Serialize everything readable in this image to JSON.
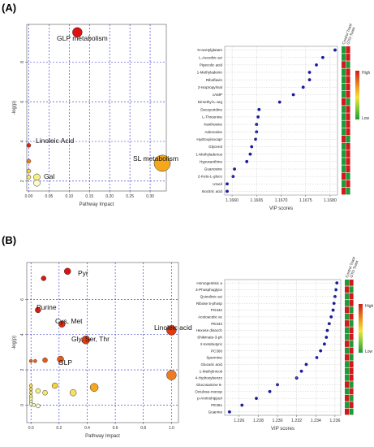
{
  "figure": {
    "panels": [
      {
        "label": "(A)",
        "pathway": {
          "xlabel": "Pathway Impact",
          "ylabel": "-log(p)",
          "xticks": [
            "0.00",
            "0.05",
            "0.10",
            "0.15",
            "0.20",
            "0.25",
            "0.30"
          ],
          "yticks": [
            "2",
            "4",
            "6",
            "8"
          ],
          "annotations": [
            "GLP metabolism",
            "Linoleic Acid",
            "SL metabolism",
            "Gal"
          ]
        },
        "vip": {
          "xlabel": "VIP scores",
          "xticks": [
            "1.1660",
            "1.1665",
            "1.1670",
            "1.1675",
            "1.1680"
          ],
          "heat_headers": [
            "Control Toast",
            "GTO Toast"
          ],
          "legend_high": "High",
          "legend_low": "Low",
          "labels": [
            "N-acetylglutam",
            "L-Ascorbic aci",
            "Pipecolic acid",
            "1-Methyladenin",
            "Riboflavin",
            "2-Isopropylmal",
            "cAMP",
            "Dimethyl-L-arg",
            "Deoxyuridine",
            "L-Threonine",
            "Xanthosine",
            "Adenosine",
            "Hydroxyisocapr",
            "Glycerol",
            "1-Methyladenos",
            "Hypoxanthine",
            "Guanosine",
            "2-Keto-L-gluco",
            "Uracil",
            "Isocitric acid"
          ]
        }
      },
      {
        "label": "(B)",
        "pathway": {
          "xlabel": "Pathway Impact",
          "ylabel": "-log(p)",
          "xticks": [
            "0.0",
            "0.2",
            "0.4",
            "0.6",
            "0.8",
            "1.0"
          ],
          "yticks": [
            "0",
            "2",
            "4",
            "6"
          ],
          "annotations": [
            "Pyr",
            "Purine",
            "Cys, Met",
            "Gly, Ser, Thr",
            "Linoleic acid",
            "GLP"
          ]
        },
        "vip": {
          "xlabel": "VIP scores",
          "xticks": [
            "1.226",
            "1.228",
            "1.230",
            "1.232",
            "1.234",
            "1.236"
          ],
          "heat_headers": [
            "Control Toast",
            "GTO Toast"
          ],
          "legend_high": "High",
          "legend_low": "Low",
          "labels": [
            "Homogentisic a",
            "3-Phosphoglyce",
            "Quinolinic aci",
            "Ribose 5-phosp",
            "PG342",
            "Acetoacetic ac",
            "PE342",
            "Hexose disacch",
            "Shikimate-3-ph",
            "2-Ketobutyric",
            "PC360",
            "Spermine",
            "Glucaric acid",
            "1-Methylnicoti",
            "4-Hydroxybenzo",
            "Glucosamine 6-",
            "Octulose-monop",
            "p-Aminohippuri",
            "PE361",
            "Guanine"
          ]
        }
      }
    ]
  },
  "chart_data": [
    {
      "type": "scatter",
      "title": "",
      "xlabel": "Pathway Impact",
      "ylabel": "-log(p)",
      "xlim": [
        -0.005,
        0.34
      ],
      "ylim": [
        1.5,
        9.9
      ],
      "grid": true,
      "points": [
        {
          "x": 0.12,
          "y": 9.5,
          "size": 6,
          "color": "#e01010",
          "label": "GLP metabolism"
        },
        {
          "x": 0.33,
          "y": 2.9,
          "size": 10,
          "color": "#f5a81c",
          "label": "SL metabolism"
        },
        {
          "x": 0.0,
          "y": 3.8,
          "size": 2.5,
          "color": "#d42a10",
          "label": "Linoleic Acid"
        },
        {
          "x": 0.0,
          "y": 3.0,
          "size": 2.5,
          "color": "#f08020",
          "label": ""
        },
        {
          "x": 0.0,
          "y": 2.5,
          "size": 2.5,
          "color": "#f7d238",
          "label": ""
        },
        {
          "x": 0.0,
          "y": 2.2,
          "size": 2.5,
          "color": "#f7e870",
          "label": ""
        },
        {
          "x": 0.02,
          "y": 2.2,
          "size": 4,
          "color": "#f7f080",
          "label": "Gal"
        },
        {
          "x": 0.02,
          "y": 1.9,
          "size": 4,
          "color": "#fafad2",
          "label": ""
        }
      ]
    },
    {
      "type": "scatter",
      "title": "",
      "xlabel": "VIP scores",
      "ylabel": "",
      "xlim": [
        1.16585,
        1.16815
      ],
      "ylim": [
        0.5,
        20.5
      ],
      "grid": true,
      "categories": [
        "N-acetylglutam",
        "L-Ascorbic aci",
        "Pipecolic acid",
        "1-Methyladenin",
        "Riboflavin",
        "2-Isopropylmal",
        "cAMP",
        "Dimethyl-L-arg",
        "Deoxyuridine",
        "L-Threonine",
        "Xanthosine",
        "Adenosine",
        "Hydroxyisocapr",
        "Glycerol",
        "1-Methyladenos",
        "Hypoxanthine",
        "Guanosine",
        "2-Keto-L-gluco",
        "Uracil",
        "Isocitric acid"
      ],
      "values": [
        1.1681,
        1.16785,
        1.16772,
        1.16758,
        1.16758,
        1.16745,
        1.16725,
        1.16697,
        1.16655,
        1.16653,
        1.1665,
        1.1665,
        1.16648,
        1.1664,
        1.16637,
        1.1663,
        1.16605,
        1.16602,
        1.1659,
        1.1659
      ],
      "heatmap": {
        "columns": [
          "Control Toast",
          "GTO Toast"
        ],
        "cells": [
          [
            0.15,
            0.9
          ],
          [
            0.15,
            0.9
          ],
          [
            0.9,
            0.15
          ],
          [
            0.15,
            0.9
          ],
          [
            0.2,
            0.85
          ],
          [
            0.15,
            0.9
          ],
          [
            0.2,
            0.85
          ],
          [
            0.9,
            0.15
          ],
          [
            0.15,
            0.9
          ],
          [
            0.15,
            0.9
          ],
          [
            0.15,
            0.9
          ],
          [
            0.15,
            0.9
          ],
          [
            0.9,
            0.15
          ],
          [
            0.2,
            0.85
          ],
          [
            0.15,
            0.9
          ],
          [
            0.15,
            0.9
          ],
          [
            0.15,
            0.9
          ],
          [
            0.9,
            0.15
          ],
          [
            0.15,
            0.9
          ],
          [
            0.9,
            0.15
          ]
        ]
      }
    },
    {
      "type": "scatter",
      "title": "",
      "xlabel": "Pathway Impact",
      "ylabel": "-log(p)",
      "xlim": [
        -0.03,
        1.05
      ],
      "ylim": [
        -1.0,
        8.1
      ],
      "grid": true,
      "points": [
        {
          "x": 0.26,
          "y": 7.6,
          "size": 4,
          "color": "#e01010",
          "label": "Pyr"
        },
        {
          "x": 0.09,
          "y": 7.2,
          "size": 3,
          "color": "#d81810",
          "label": ""
        },
        {
          "x": 0.05,
          "y": 5.4,
          "size": 3.5,
          "color": "#d82010",
          "label": "Purine"
        },
        {
          "x": 0.22,
          "y": 4.6,
          "size": 4,
          "color": "#dc2810",
          "label": "Cys, Met"
        },
        {
          "x": 0.39,
          "y": 3.7,
          "size": 5,
          "color": "#e03a10",
          "label": "Gly, Ser, Thr"
        },
        {
          "x": 1.0,
          "y": 4.25,
          "size": 6,
          "color": "#e03a10",
          "label": "Linoleic acid"
        },
        {
          "x": 0.21,
          "y": 2.6,
          "size": 4,
          "color": "#e85a18",
          "label": "GLP"
        },
        {
          "x": 0.1,
          "y": 2.55,
          "size": 3,
          "color": "#e85a18",
          "label": ""
        },
        {
          "x": 0.0,
          "y": 2.5,
          "size": 2,
          "color": "#e85a18",
          "label": ""
        },
        {
          "x": 0.03,
          "y": 2.5,
          "size": 2,
          "color": "#e86020",
          "label": ""
        },
        {
          "x": 1.0,
          "y": 1.7,
          "size": 6,
          "color": "#f07a20",
          "label": ""
        },
        {
          "x": 0.45,
          "y": 1.0,
          "size": 5,
          "color": "#f5a81c",
          "label": ""
        },
        {
          "x": 0.17,
          "y": 1.1,
          "size": 3.5,
          "color": "#f7d238",
          "label": ""
        },
        {
          "x": 0.3,
          "y": 0.7,
          "size": 4,
          "color": "#f7e060",
          "label": ""
        },
        {
          "x": 0.1,
          "y": 0.7,
          "size": 3,
          "color": "#f7e870",
          "label": ""
        },
        {
          "x": 0.05,
          "y": 0.8,
          "size": 3,
          "color": "#f7f080",
          "label": ""
        },
        {
          "x": 0.0,
          "y": 1.1,
          "size": 2,
          "color": "#f7e050",
          "label": ""
        },
        {
          "x": 0.0,
          "y": 0.9,
          "size": 2,
          "color": "#f7e050",
          "label": ""
        },
        {
          "x": 0.0,
          "y": 0.7,
          "size": 2,
          "color": "#f7e870",
          "label": ""
        },
        {
          "x": 0.0,
          "y": 0.5,
          "size": 2,
          "color": "#f7f080",
          "label": ""
        },
        {
          "x": 0.0,
          "y": 0.35,
          "size": 2,
          "color": "#fafaa0",
          "label": ""
        },
        {
          "x": 0.0,
          "y": 0.2,
          "size": 2,
          "color": "#fafaa0",
          "label": ""
        },
        {
          "x": 0.0,
          "y": 0.05,
          "size": 2,
          "color": "#fafad2",
          "label": ""
        },
        {
          "x": 0.02,
          "y": 0.0,
          "size": 2,
          "color": "#fafad2",
          "label": ""
        },
        {
          "x": 0.05,
          "y": -0.05,
          "size": 2.5,
          "color": "#fafad2",
          "label": ""
        }
      ]
    },
    {
      "type": "scatter",
      "title": "",
      "xlabel": "VIP scores",
      "ylabel": "",
      "xlim": [
        1.2245,
        1.2366
      ],
      "ylim": [
        0.5,
        20.5
      ],
      "grid": true,
      "categories": [
        "Homogentisic a",
        "3-Phosphoglyce",
        "Quinolinic aci",
        "Ribose 5-phosp",
        "PG342",
        "Acetoacetic ac",
        "PE342",
        "Hexose disacch",
        "Shikimate-3-ph",
        "2-Ketobutyric",
        "PC360",
        "Spermine",
        "Glucaric acid",
        "1-Methylnicoti",
        "4-Hydroxybenzo",
        "Glucosamine 6-",
        "Octulose-monop",
        "p-Aminohippuri",
        "PE361",
        "Guanine"
      ],
      "values": [
        1.2362,
        1.2361,
        1.236,
        1.2359,
        1.2358,
        1.2356,
        1.2354,
        1.2352,
        1.2351,
        1.2349,
        1.2345,
        1.2341,
        1.233,
        1.2325,
        1.232,
        1.23,
        1.2292,
        1.2278,
        1.2263,
        1.225
      ],
      "heatmap": {
        "columns": [
          "Control Toast",
          "GTO Toast"
        ],
        "cells": [
          [
            0.15,
            0.9
          ],
          [
            0.9,
            0.15
          ],
          [
            0.15,
            0.9
          ],
          [
            0.15,
            0.9
          ],
          [
            0.9,
            0.15
          ],
          [
            0.15,
            0.9
          ],
          [
            0.9,
            0.15
          ],
          [
            0.15,
            0.9
          ],
          [
            0.15,
            0.9
          ],
          [
            0.9,
            0.15
          ],
          [
            0.15,
            0.9
          ],
          [
            0.9,
            0.15
          ],
          [
            0.15,
            0.9
          ],
          [
            0.15,
            0.9
          ],
          [
            0.15,
            0.9
          ],
          [
            0.9,
            0.15
          ],
          [
            0.15,
            0.9
          ],
          [
            0.9,
            0.15
          ],
          [
            0.15,
            0.9
          ],
          [
            0.9,
            0.15
          ]
        ]
      }
    }
  ]
}
